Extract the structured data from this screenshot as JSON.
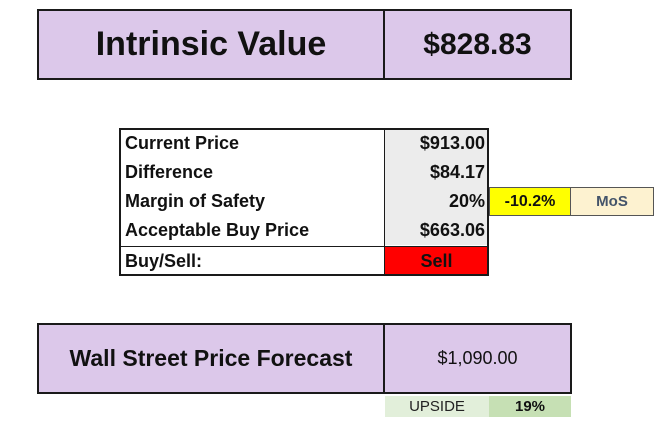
{
  "intrinsic": {
    "label": "Intrinsic Value",
    "value": "$828.83"
  },
  "table": {
    "rows": [
      {
        "label": "Current Price",
        "value": "$913.00"
      },
      {
        "label": "Difference",
        "value": "$84.17"
      },
      {
        "label": "Margin of Safety",
        "value": "20%"
      },
      {
        "label": "Acceptable Buy Price",
        "value": "$663.06"
      }
    ],
    "buy_sell": {
      "label": "Buy/Sell:",
      "value": "Sell"
    }
  },
  "mos": {
    "percent": "-10.2%",
    "tag": "MoS"
  },
  "wall_street": {
    "label": "Wall Street Price Forecast",
    "value": "$1,090.00",
    "upside_label": "UPSIDE",
    "upside_value": "19%"
  },
  "colors": {
    "header_fill": "#dcc8ea",
    "sell_fill": "#ff0000",
    "mos_fill": "#ffff00",
    "mos_tag_fill": "#fdf2d0",
    "upside_fill": "#c6e0b4"
  }
}
